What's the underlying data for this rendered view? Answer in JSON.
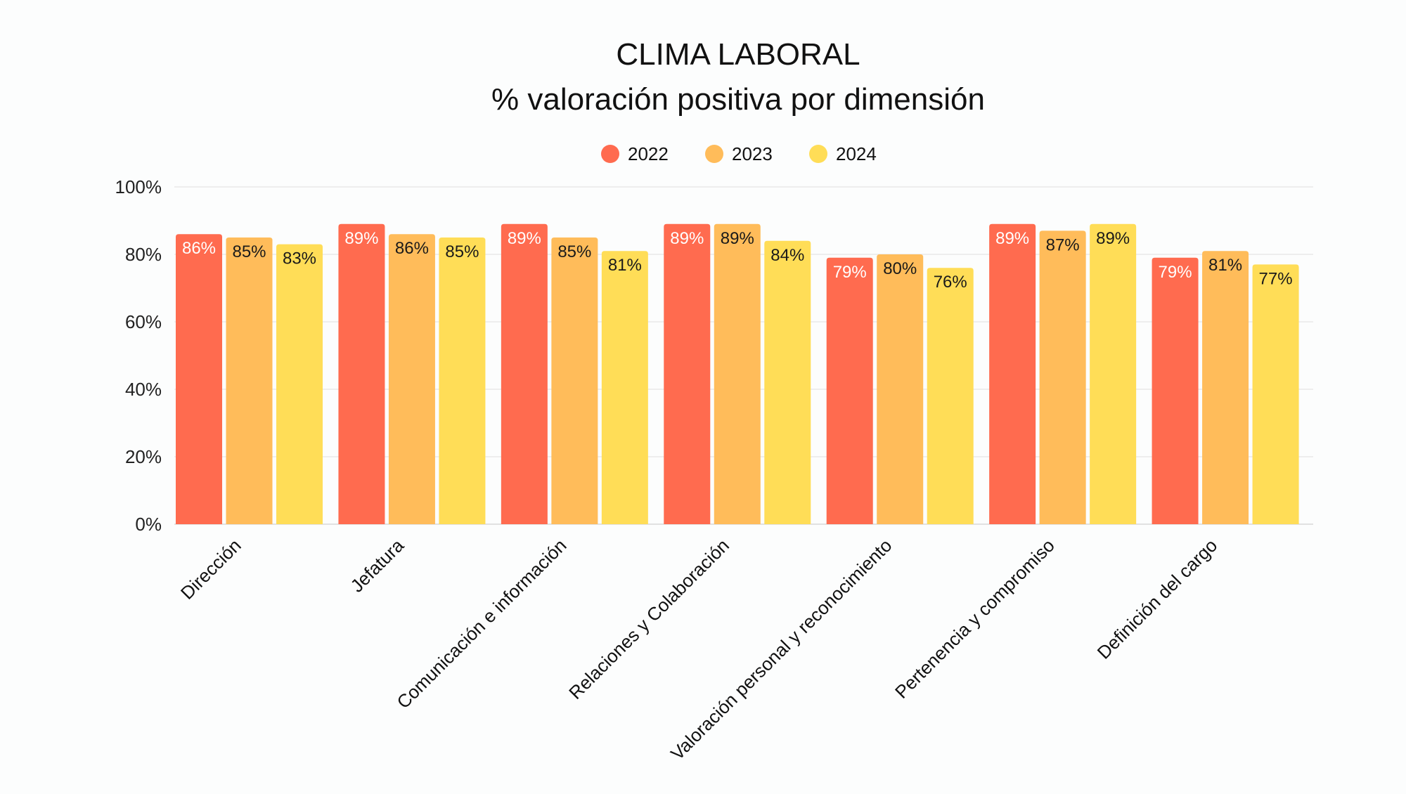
{
  "chart_data": {
    "type": "bar",
    "title": "CLIMA LABORAL",
    "subtitle": "% valoración positiva por dimensión",
    "xlabel": "",
    "ylabel": "",
    "ylim": [
      0,
      100
    ],
    "y_ticks": [
      "0%",
      "20%",
      "40%",
      "60%",
      "80%",
      "100%"
    ],
    "y_tick_values": [
      0,
      20,
      40,
      60,
      80,
      100
    ],
    "grid": true,
    "legend_position": "top-center",
    "categories": [
      "Dirección",
      "Jefatura",
      "Comunicación e información",
      "Relaciones y Colaboración",
      "Valoración personal y reconocimiento",
      "Pertenencia y compromiso",
      "Definición del cargo"
    ],
    "series": [
      {
        "name": "2022",
        "color": "#ff6b4f",
        "label_color": "#ffffff",
        "values": [
          86,
          89,
          89,
          89,
          79,
          89,
          79
        ]
      },
      {
        "name": "2023",
        "color": "#ffbc5a",
        "label_color": "#1a1a1a",
        "values": [
          85,
          86,
          85,
          89,
          80,
          87,
          81
        ]
      },
      {
        "name": "2024",
        "color": "#ffdd57",
        "label_color": "#1a1a1a",
        "values": [
          83,
          85,
          81,
          84,
          76,
          89,
          77
        ]
      }
    ],
    "value_suffix": "%"
  }
}
